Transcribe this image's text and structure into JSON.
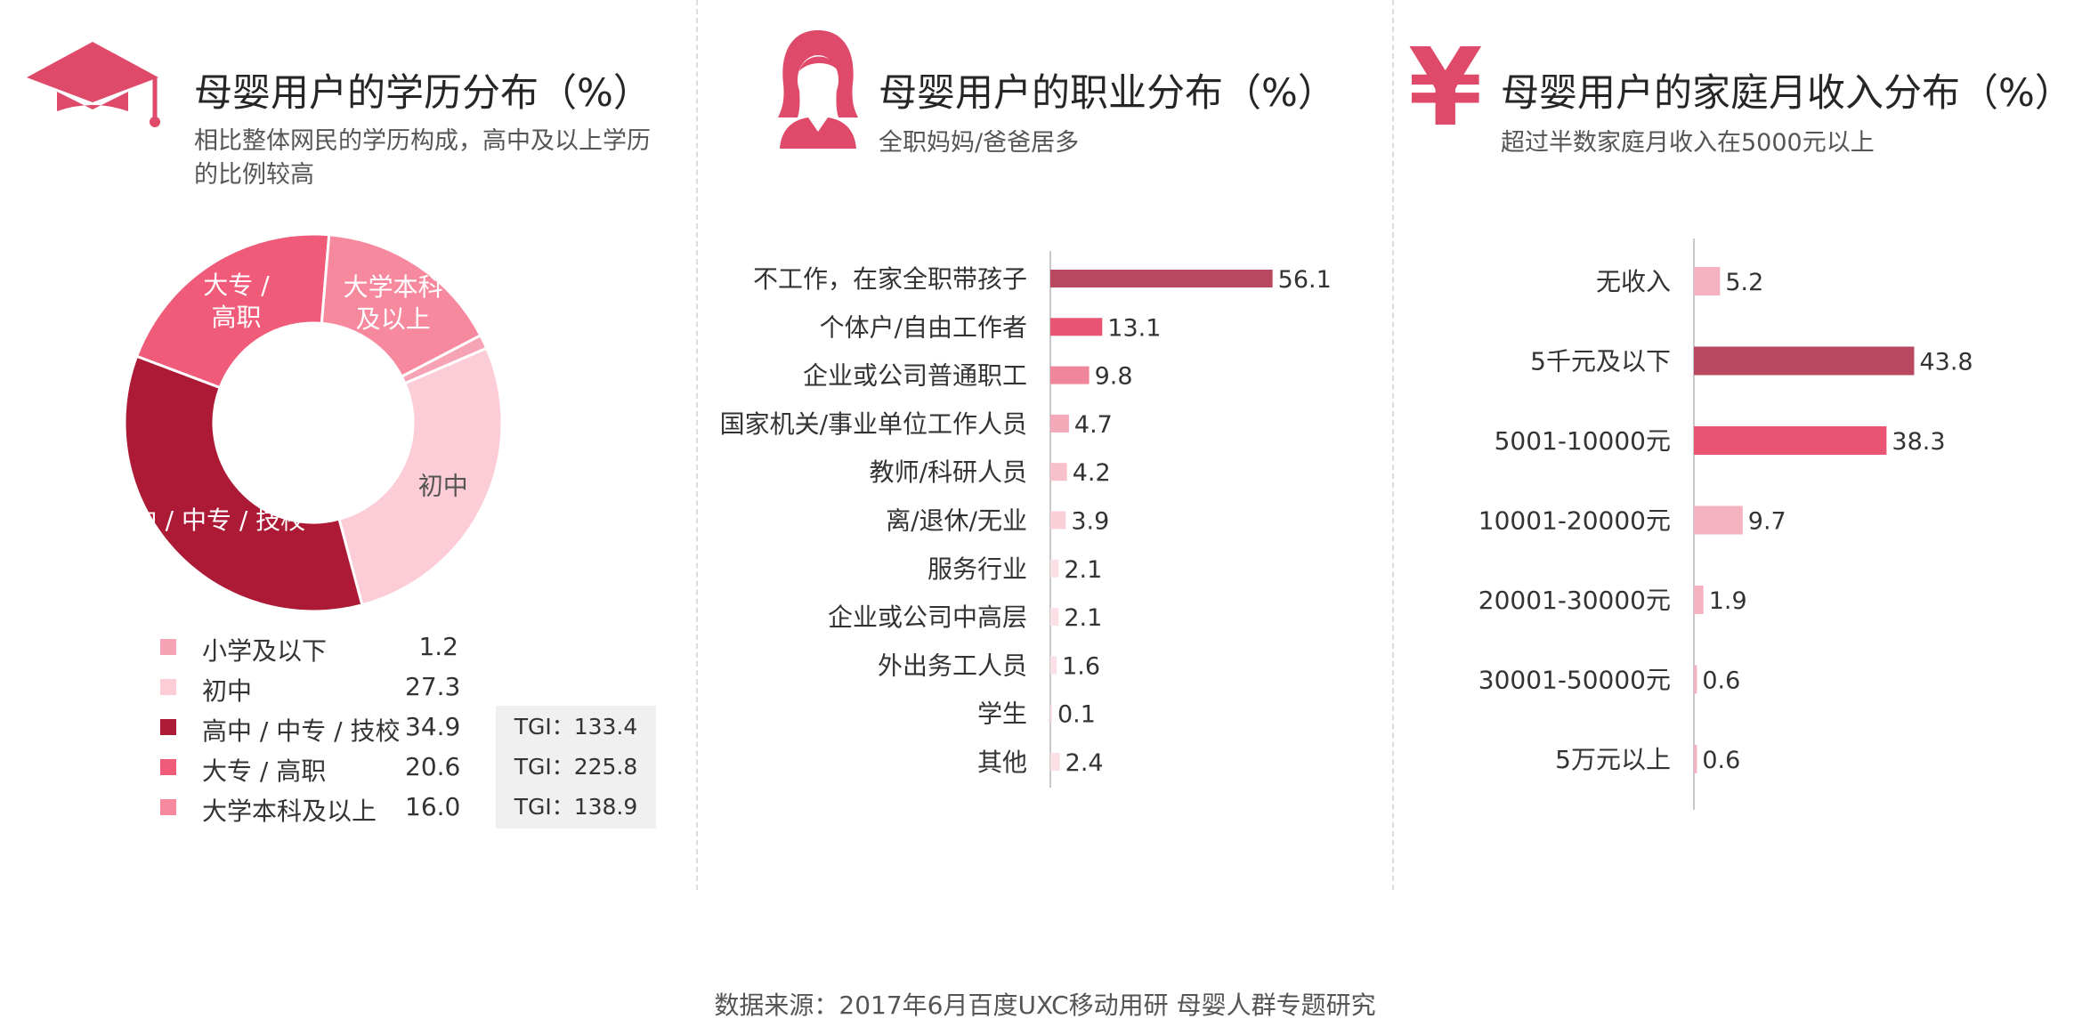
{
  "colors": {
    "primary_dark": "#b8475f",
    "crimson": "#ad1a36",
    "red": "#e85472",
    "pink": "#f0889d",
    "light_pink": "#f5b2c0",
    "pale_pink": "#fcd0d9",
    "palest_pink": "#fbe0e6",
    "icon": "#e04a6a"
  },
  "edu": {
    "title": "母婴用户的学历分布（%）",
    "subtitle_line1": "相比整体网民的学历构成，高中及以上学历",
    "subtitle_line2": "的比例较高",
    "icon": "graduation-cap-icon"
  },
  "job": {
    "title": "母婴用户的职业分布（%）",
    "subtitle": "全职妈妈/爸爸居多",
    "icon": "woman-avatar-icon"
  },
  "inc": {
    "title": "母婴用户的家庭月收入分布（%）",
    "subtitle": "超过半数家庭月收入在5000元以上",
    "icon": "yen-icon",
    "icon_glyph": "¥"
  },
  "source": "数据来源：2017年6月百度UXC移动用研 母婴人群专题研究",
  "chart_data": [
    {
      "type": "pie",
      "title": "母婴用户的学历分布（%）",
      "categories": [
        "小学及以下",
        "初中",
        "高中 / 中专 / 技校",
        "大专 / 高职",
        "大学本科及以上"
      ],
      "values": [
        1.2,
        27.3,
        34.9,
        20.6,
        16.0
      ],
      "value_labels": [
        "1.2",
        "27.3",
        "34.9",
        "20.6",
        "16.0"
      ],
      "slice_labels": [
        [
          ""
        ],
        [
          "初中"
        ],
        [
          "高中 / 中专 / 技校"
        ],
        [
          "大专 /",
          "高职"
        ],
        [
          "大学本科",
          "及以上"
        ]
      ],
      "colors": [
        "#f5a3b5",
        "#fccdd7",
        "#ad1a36",
        "#ef5b79",
        "#f7899f"
      ],
      "tgi": [
        "",
        "",
        "TGI：133.4",
        "TGI：225.8",
        "TGI：138.9"
      ],
      "legend": "bottom"
    },
    {
      "type": "bar",
      "orientation": "horizontal",
      "title": "母婴用户的职业分布（%）",
      "categories": [
        "不工作，在家全职带孩子",
        "个体户/自由工作者",
        "企业或公司普通职工",
        "国家机关/事业单位工作人员",
        "教师/科研人员",
        "离/退休/无业",
        "服务行业",
        "企业或公司中高层",
        "外出务工人员",
        "学生",
        "其他"
      ],
      "values": [
        56.1,
        13.1,
        9.8,
        4.7,
        4.2,
        3.9,
        2.1,
        2.1,
        1.6,
        0.1,
        2.4
      ],
      "value_labels": [
        "56.1",
        "13.1",
        "9.8",
        "4.7",
        "4.2",
        "3.9",
        "2.1",
        "2.1",
        "1.6",
        "0.1",
        "2.4"
      ],
      "colors": [
        "#b8475f",
        "#e85472",
        "#ef8699",
        "#f4a9b8",
        "#f7c0cb",
        "#f9d0d8",
        "#fbe0e6",
        "#fbe0e6",
        "#fbe0e6",
        "#fbe0e6",
        "#fbe0e6"
      ]
    },
    {
      "type": "bar",
      "orientation": "horizontal",
      "title": "母婴用户的家庭月收入分布（%）",
      "categories": [
        "无收入",
        "5千元及以下",
        "5001-10000元",
        "10001-20000元",
        "20001-30000元",
        "30001-50000元",
        "5万元以上"
      ],
      "values": [
        5.2,
        43.8,
        38.3,
        9.7,
        1.9,
        0.6,
        0.6
      ],
      "value_labels": [
        "5.2",
        "43.8",
        "38.3",
        "9.7",
        "1.9",
        "0.6",
        "0.6"
      ],
      "colors": [
        "#f5b2c0",
        "#b8475f",
        "#e85472",
        "#f5b2c0",
        "#f5b2c0",
        "#f5b2c0",
        "#f5b2c0"
      ]
    }
  ]
}
